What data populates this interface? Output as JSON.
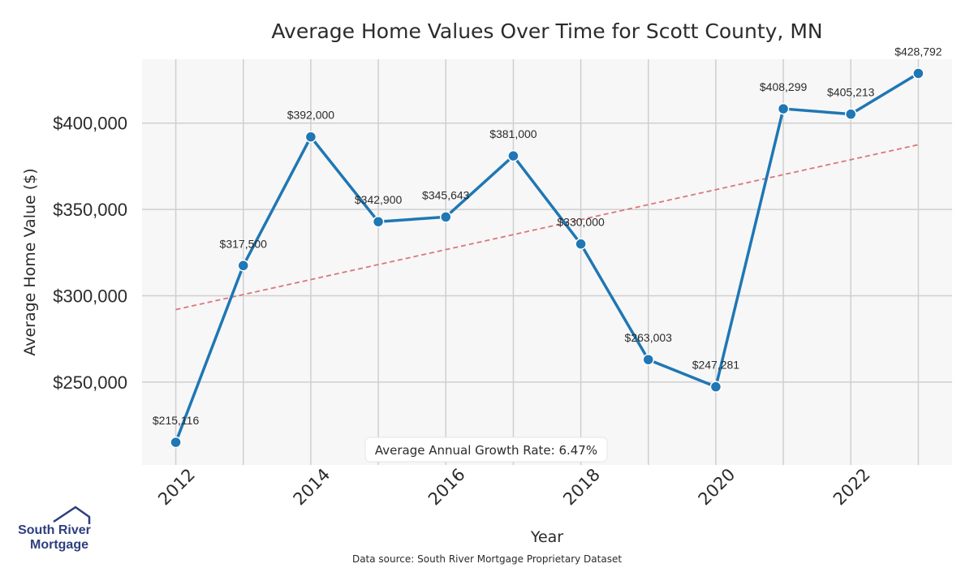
{
  "chart_data": {
    "type": "line",
    "title": "Average Home Values Over Time for Scott County, MN",
    "xlabel": "Year",
    "ylabel": "Average Home Value ($)",
    "x": [
      2012,
      2013,
      2014,
      2015,
      2016,
      2017,
      2018,
      2019,
      2020,
      2021,
      2022,
      2023
    ],
    "series": [
      {
        "name": "Average Home Value",
        "values": [
          215116,
          317500,
          392000,
          342900,
          345643,
          381000,
          330000,
          263003,
          247281,
          408299,
          405213,
          428792
        ],
        "labels": [
          "$215,116",
          "$317,500",
          "$392,000",
          "$342,900",
          "$345,643",
          "$381,000",
          "$330,000",
          "$263,003",
          "$247,281",
          "$408,299",
          "$405,213",
          "$428,792"
        ],
        "color": "#1f77b4"
      }
    ],
    "trendline": {
      "start": [
        2012,
        292000
      ],
      "end": [
        2023,
        387500
      ],
      "color": "#d9777a",
      "style": "dashed"
    },
    "xticks": [
      2012,
      2014,
      2016,
      2018,
      2020,
      2022
    ],
    "xtick_labels": [
      "2012",
      "2014",
      "2016",
      "2018",
      "2020",
      "2022"
    ],
    "yticks": [
      250000,
      300000,
      350000,
      400000
    ],
    "ytick_labels": [
      "$250,000",
      "$300,000",
      "$350,000",
      "$400,000"
    ],
    "xlim": [
      2011.5,
      2023.5
    ],
    "ylim": [
      202000,
      437000
    ],
    "grid": true,
    "annotation": "Average Annual Growth Rate: 6.47%"
  },
  "logo": {
    "line1": "South River",
    "line2": "Mortgage",
    "color": "#2e3f7f"
  },
  "source_note": "Data source: South River Mortgage Proprietary Dataset"
}
